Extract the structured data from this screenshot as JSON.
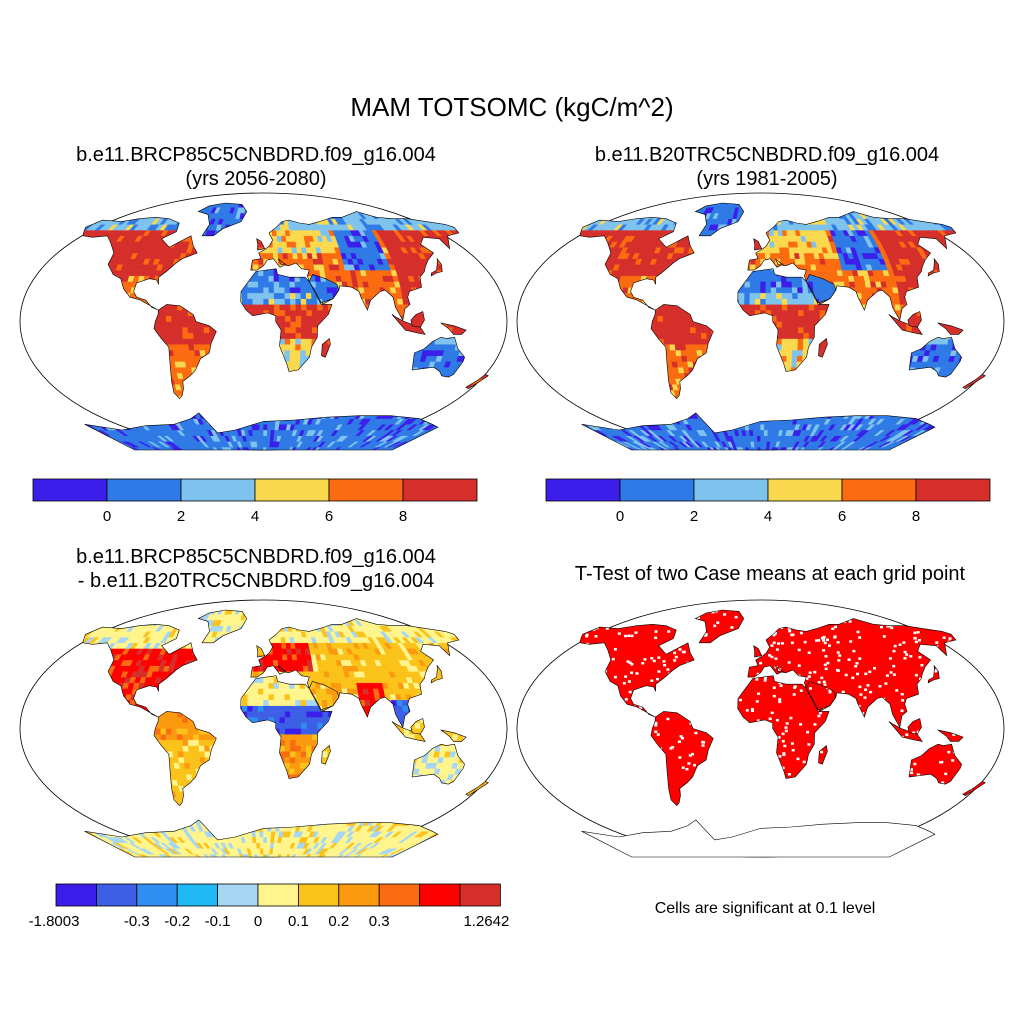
{
  "main_title": "MAM TOTSOMC (kgC/m^2)",
  "panels": [
    {
      "title_line1": "b.e11.BRCP85C5CNBDRD.f09_g16.004",
      "title_line2": "(yrs 2056-2080)",
      "kind": "field"
    },
    {
      "title_line1": "b.e11.B20TRC5CNBDRD.f09_g16.004",
      "title_line2": "(yrs 1981-2005)",
      "kind": "field"
    },
    {
      "title_line1": "b.e11.BRCP85C5CNBDRD.f09_g16.004",
      "title_line2": "- b.e11.B20TRC5CNBDRD.f09_g16.004",
      "kind": "difference"
    },
    {
      "title_line1": "T-Test of two Case means at each grid point",
      "kind": "significance",
      "note": "Cells are significant at 0.1 level"
    }
  ],
  "colorbar_field": {
    "colors": [
      "#3b1eea",
      "#2f7ae6",
      "#7ec3ee",
      "#fbd94e",
      "#fb6c11",
      "#d62f2b"
    ],
    "labels": [
      "0",
      "2",
      "4",
      "6",
      "8"
    ]
  },
  "colorbar_diff": {
    "colors": [
      "#3b1eea",
      "#3d5fe6",
      "#2f8ff0",
      "#20b7f5",
      "#a6d6f2",
      "#fff58c",
      "#fbc21a",
      "#fb9a0e",
      "#fb6c11",
      "#ff0000",
      "#d62f2b"
    ],
    "labels": [
      "-1.8003",
      "-0.3",
      "-0.2",
      "-0.1",
      "0",
      "0.1",
      "0.2",
      "0.3",
      "1.2642"
    ]
  },
  "significance_color": "#ff0000",
  "chart_data": {
    "type": "heatmap",
    "title": "MAM TOTSOMC (kgC/m^2)",
    "variable": "TOTSOMC",
    "units": "kgC/m^2",
    "season": "MAM",
    "maps": [
      {
        "case": "b.e11.BRCP85C5CNBDRD.f09_g16.004",
        "years": "(yrs 2056-2080)",
        "contour_levels": [
          0,
          2,
          4,
          6,
          8
        ]
      },
      {
        "case": "b.e11.B20TRC5CNBDRD.f09_g16.004",
        "years": "(yrs 1981-2005)",
        "contour_levels": [
          0,
          2,
          4,
          6,
          8
        ]
      },
      {
        "case": "b.e11.BRCP85C5CNBDRD.f09_g16.004 - b.e11.B20TRC5CNBDRD.f09_g16.004",
        "min": -1.8003,
        "max": 1.2642,
        "contour_levels": [
          -0.3,
          -0.2,
          -0.1,
          0,
          0.1,
          0.2,
          0.3
        ]
      },
      {
        "case": "T-Test of two Case means at each grid point",
        "significance_level": 0.1
      }
    ]
  }
}
